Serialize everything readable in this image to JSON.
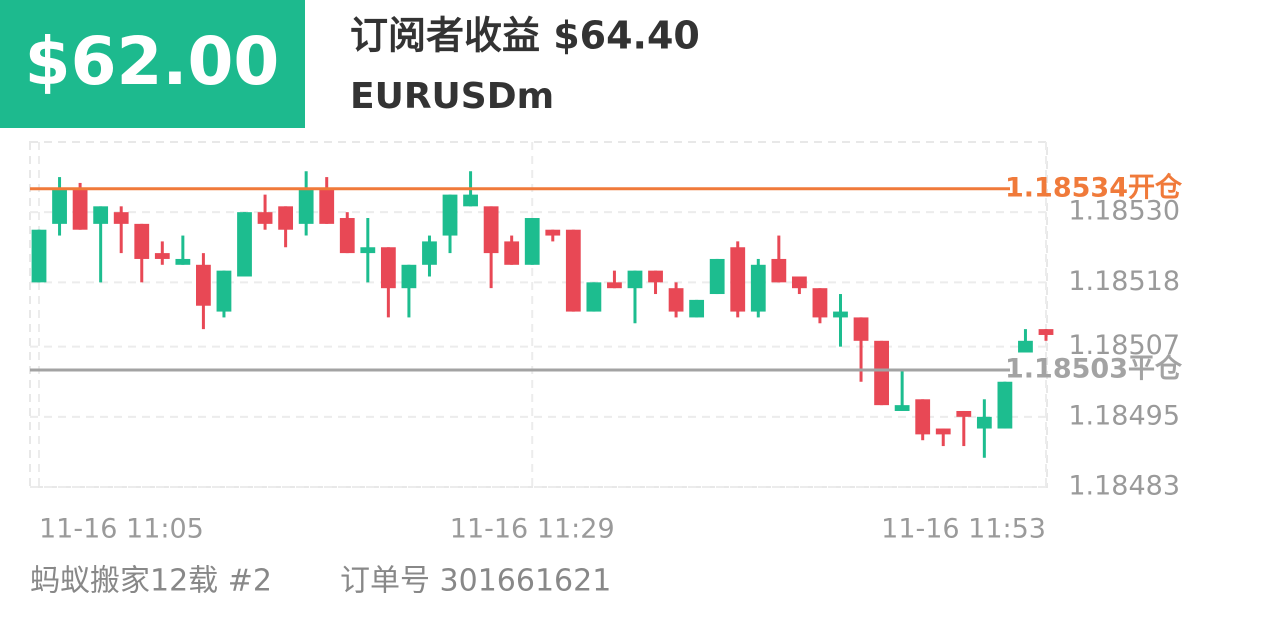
{
  "header": {
    "profit": "$62.00",
    "title": "订阅者收益 $64.40",
    "symbol": "EURUSDm"
  },
  "footer": {
    "account": "蚂蚁搬家12载 #2",
    "order": "订单号 301661621"
  },
  "chart_data": {
    "type": "candlestick",
    "categories": [
      "11-16 11:05",
      null,
      null,
      null,
      null,
      null,
      null,
      null,
      null,
      null,
      null,
      null,
      null,
      null,
      null,
      null,
      null,
      null,
      null,
      null,
      null,
      null,
      null,
      null,
      "11-16 11:29",
      null,
      null,
      null,
      null,
      null,
      null,
      null,
      null,
      null,
      null,
      null,
      null,
      null,
      null,
      null,
      null,
      null,
      null,
      null,
      null,
      null,
      null,
      null,
      null,
      "11-16 11:53"
    ],
    "open": [
      1.18518,
      1.18528,
      1.18534,
      1.18528,
      1.1853,
      1.18528,
      1.18523,
      1.18521,
      1.18521,
      1.18513,
      1.18519,
      1.1853,
      1.18531,
      1.18528,
      1.18534,
      1.18529,
      1.18523,
      1.18524,
      1.18517,
      1.18521,
      1.18526,
      1.18531,
      1.18531,
      1.18525,
      1.18521,
      1.18527,
      1.18527,
      1.18513,
      1.18518,
      1.18517,
      1.1852,
      1.18517,
      1.18512,
      1.18516,
      1.18524,
      1.18513,
      1.18522,
      1.18519,
      1.18517,
      1.18512,
      1.18512,
      1.18508,
      1.18496,
      1.18498,
      1.18493,
      1.18496,
      1.18493,
      1.18493,
      1.18506,
      1.1851
    ],
    "high": [
      1.18527,
      1.18536,
      1.18535,
      1.18531,
      1.18531,
      1.18528,
      1.18525,
      1.18526,
      1.18523,
      1.1852,
      1.1853,
      1.18533,
      1.18531,
      1.18537,
      1.18536,
      1.1853,
      1.18529,
      1.18524,
      1.18521,
      1.18526,
      1.18533,
      1.18537,
      1.18531,
      1.18526,
      1.18529,
      1.18527,
      1.18527,
      1.18518,
      1.1852,
      1.1852,
      1.1852,
      1.18518,
      1.18515,
      1.18522,
      1.18525,
      1.18522,
      1.18526,
      1.18519,
      1.18517,
      1.18516,
      1.18512,
      1.18508,
      1.18503,
      1.18498,
      1.18493,
      1.18496,
      1.18498,
      1.18501,
      1.1851,
      1.1851
    ],
    "low": [
      1.18518,
      1.18526,
      1.18527,
      1.18518,
      1.18523,
      1.18518,
      1.18521,
      1.18521,
      1.1851,
      1.18512,
      1.18519,
      1.18527,
      1.18524,
      1.18526,
      1.18528,
      1.18523,
      1.18518,
      1.18512,
      1.18512,
      1.18519,
      1.18523,
      1.18531,
      1.18517,
      1.18521,
      1.18521,
      1.18525,
      1.18513,
      1.18513,
      1.18517,
      1.18511,
      1.18516,
      1.18512,
      1.18512,
      1.18516,
      1.18512,
      1.18512,
      1.18518,
      1.18516,
      1.18511,
      1.18507,
      1.18501,
      1.18497,
      1.18496,
      1.18491,
      1.1849,
      1.1849,
      1.18488,
      1.18493,
      1.18506,
      1.18508
    ],
    "close": [
      1.18527,
      1.18534,
      1.18527,
      1.18531,
      1.18528,
      1.18522,
      1.18522,
      1.18522,
      1.18514,
      1.1852,
      1.1853,
      1.18528,
      1.18527,
      1.18534,
      1.18528,
      1.18523,
      1.18524,
      1.18517,
      1.18521,
      1.18525,
      1.18533,
      1.18533,
      1.18523,
      1.18521,
      1.18529,
      1.18526,
      1.18513,
      1.18518,
      1.18517,
      1.1852,
      1.18518,
      1.18513,
      1.18515,
      1.18522,
      1.18513,
      1.18521,
      1.18518,
      1.18517,
      1.18512,
      1.18513,
      1.18508,
      1.18497,
      1.18497,
      1.18492,
      1.18492,
      1.18495,
      1.18495,
      1.18501,
      1.18508,
      1.18509
    ],
    "up_color": "#1dbd8f",
    "down_color": "#e84855",
    "ylim": [
      1.18483,
      1.18542
    ],
    "yticks": [
      1.18483,
      1.18495,
      1.18507,
      1.18518,
      {
        "value": 1.1853,
        "label": "1.18530"
      }
    ],
    "grid": true,
    "hlines": [
      {
        "value": 1.18534,
        "label": "1.18534开仓",
        "color": "#f07a3a"
      },
      {
        "value": 1.18503,
        "label": "1.18503平仓",
        "color": "#a3a3a3"
      }
    ]
  }
}
